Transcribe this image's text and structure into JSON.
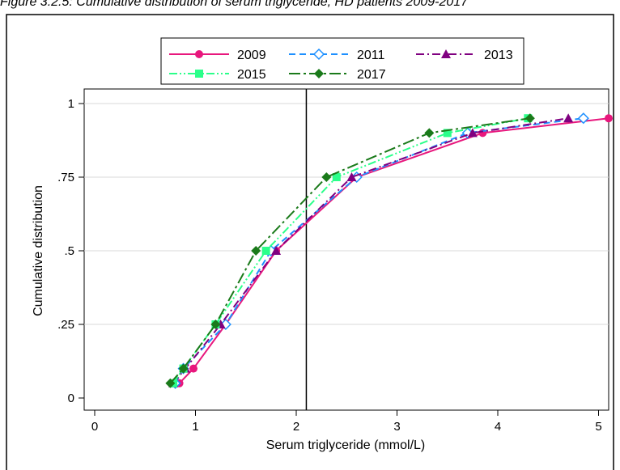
{
  "caption": "Figure 3.2.5: Cumulative distribution of serum triglyceride, HD patients 2009-2017",
  "chart_data": {
    "type": "line",
    "xlabel": "Serum triglyceride (mmol/L)",
    "ylabel": "Cumulative distribution",
    "xlim": [
      0,
      5.2
    ],
    "ylim": [
      0,
      1
    ],
    "xticks": [
      "0",
      "1",
      "2",
      "3",
      "4",
      "5"
    ],
    "yticks": [
      "0",
      ".25",
      ".5",
      ".75",
      "1"
    ],
    "xtick_values": [
      0,
      1,
      2,
      3,
      4,
      5
    ],
    "ytick_values": [
      0,
      0.25,
      0.5,
      0.75,
      1
    ],
    "reference_line_x": 2.1,
    "grid": true,
    "legend_position": "top",
    "series": [
      {
        "name": "2009",
        "color": "#e8177d",
        "dash": "solid",
        "marker": "circle",
        "x": [
          0.84,
          0.98,
          1.3,
          1.8,
          2.6,
          3.85,
          5.1
        ],
        "y": [
          0.05,
          0.1,
          0.25,
          0.5,
          0.75,
          0.9,
          0.95
        ]
      },
      {
        "name": "2011",
        "color": "#1e90ff",
        "dash": "dashed",
        "marker": "diamond-open",
        "x": [
          0.8,
          0.88,
          1.3,
          1.75,
          2.6,
          3.7,
          4.85
        ],
        "y": [
          0.05,
          0.1,
          0.25,
          0.5,
          0.75,
          0.9,
          0.95
        ]
      },
      {
        "name": "2013",
        "color": "#800080",
        "dash": "dashdot",
        "marker": "triangle",
        "x": [
          0.78,
          0.9,
          1.25,
          1.8,
          2.55,
          3.75,
          4.7
        ],
        "y": [
          0.05,
          0.1,
          0.25,
          0.5,
          0.75,
          0.9,
          0.95
        ]
      },
      {
        "name": "2015",
        "color": "#2bff8a",
        "dash": "dashdotdot",
        "marker": "square",
        "x": [
          0.78,
          0.88,
          1.2,
          1.7,
          2.4,
          3.5,
          4.3
        ],
        "y": [
          0.05,
          0.1,
          0.25,
          0.5,
          0.75,
          0.9,
          0.95
        ]
      },
      {
        "name": "2017",
        "color": "#1a7a1a",
        "dash": "longdash",
        "marker": "diamond",
        "x": [
          0.75,
          0.88,
          1.2,
          1.6,
          2.3,
          3.32,
          4.32
        ],
        "y": [
          0.05,
          0.1,
          0.25,
          0.5,
          0.75,
          0.9,
          0.95
        ]
      }
    ]
  }
}
